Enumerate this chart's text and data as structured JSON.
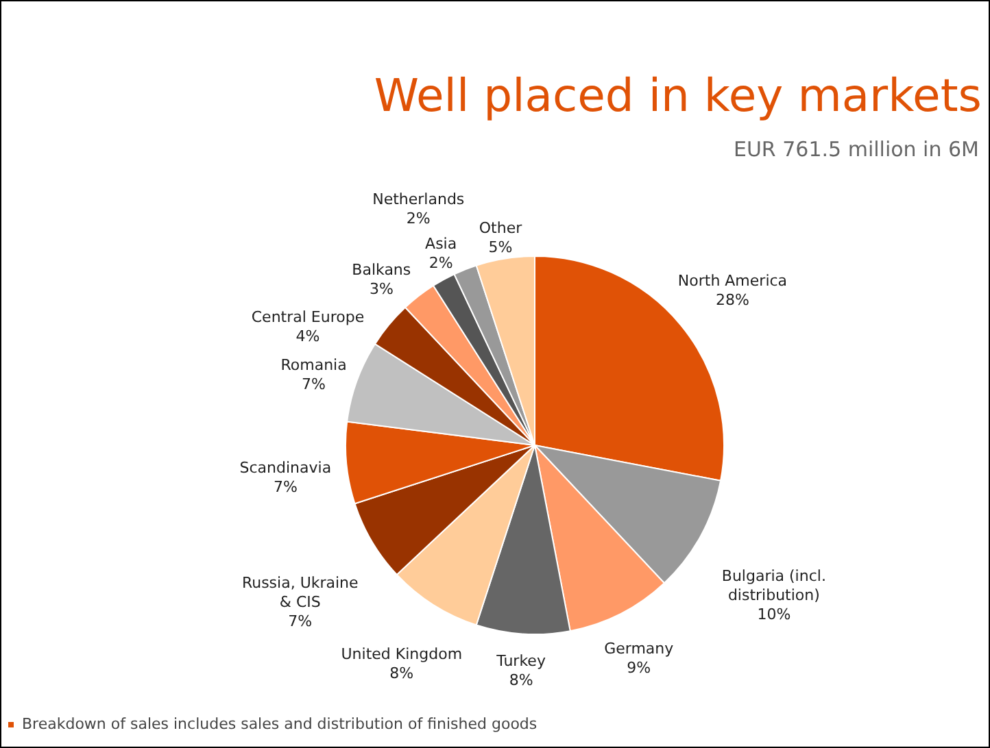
{
  "chart_data": {
    "type": "pie",
    "title": "Well placed in key markets",
    "subtitle": "EUR 761.5 million in 6M",
    "categories": [
      "North America",
      "Bulgaria (incl. distribution)",
      "Germany",
      "Turkey",
      "United Kingdom",
      "Russia, Ukraine & CIS",
      "Scandinavia",
      "Romania",
      "Central Europe",
      "Balkans",
      "Netherlands",
      "Asia",
      "Other"
    ],
    "values": [
      28,
      10,
      9,
      8,
      8,
      7,
      7,
      7,
      4,
      3,
      2,
      2,
      5
    ],
    "value_labels": [
      "28%",
      "10%",
      "9%",
      "8%",
      "8%",
      "7%",
      "7%",
      "7%",
      "4%",
      "3%",
      "2%",
      "2%",
      "5%"
    ],
    "colors": [
      "#e05206",
      "#999999",
      "#ff9966",
      "#666666",
      "#ffcc99",
      "#993300",
      "#e05206",
      "#c0c0c0",
      "#993300",
      "#ff9966",
      "#555555",
      "#999999",
      "#ffcc99"
    ],
    "annotations": [
      "Breakdown of sales includes sales and distribution of finished goods"
    ]
  }
}
